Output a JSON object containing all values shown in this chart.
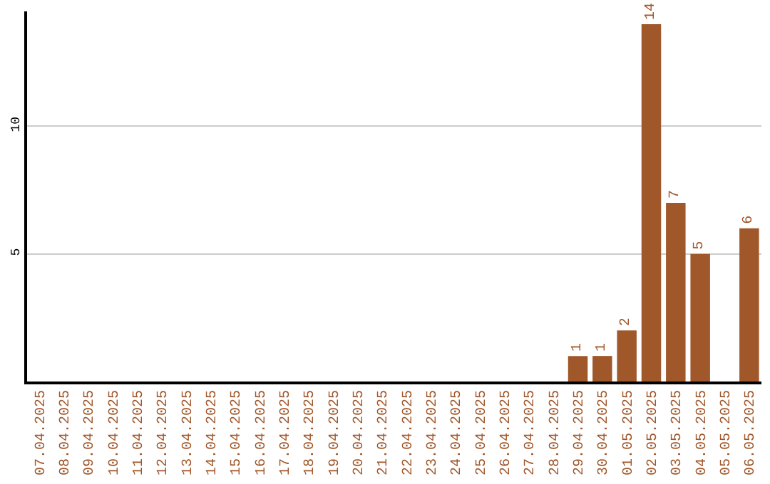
{
  "chart_data": {
    "type": "bar",
    "categories": [
      "07.04.2025",
      "08.04.2025",
      "09.04.2025",
      "10.04.2025",
      "11.04.2025",
      "12.04.2025",
      "13.04.2025",
      "14.04.2025",
      "15.04.2025",
      "16.04.2025",
      "17.04.2025",
      "18.04.2025",
      "19.04.2025",
      "20.04.2025",
      "21.04.2025",
      "22.04.2025",
      "23.04.2025",
      "24.04.2025",
      "25.04.2025",
      "26.04.2025",
      "27.04.2025",
      "28.04.2025",
      "29.04.2025",
      "30.04.2025",
      "01.05.2025",
      "02.05.2025",
      "03.05.2025",
      "04.05.2025",
      "05.05.2025",
      "06.05.2025"
    ],
    "values": [
      0,
      0,
      0,
      0,
      0,
      0,
      0,
      0,
      0,
      0,
      0,
      0,
      0,
      0,
      0,
      0,
      0,
      0,
      0,
      0,
      0,
      0,
      1,
      1,
      2,
      14,
      7,
      5,
      0,
      6
    ],
    "value_labels": [
      null,
      null,
      null,
      null,
      null,
      null,
      null,
      null,
      null,
      null,
      null,
      null,
      null,
      null,
      null,
      null,
      null,
      null,
      null,
      null,
      null,
      null,
      "1",
      "1",
      "2",
      "14",
      "7",
      "5",
      null,
      "6"
    ],
    "color": "#a0572a",
    "ylim": [
      0,
      14.5
    ],
    "yticks": [
      5,
      10
    ],
    "grid": "y",
    "legend": false
  }
}
